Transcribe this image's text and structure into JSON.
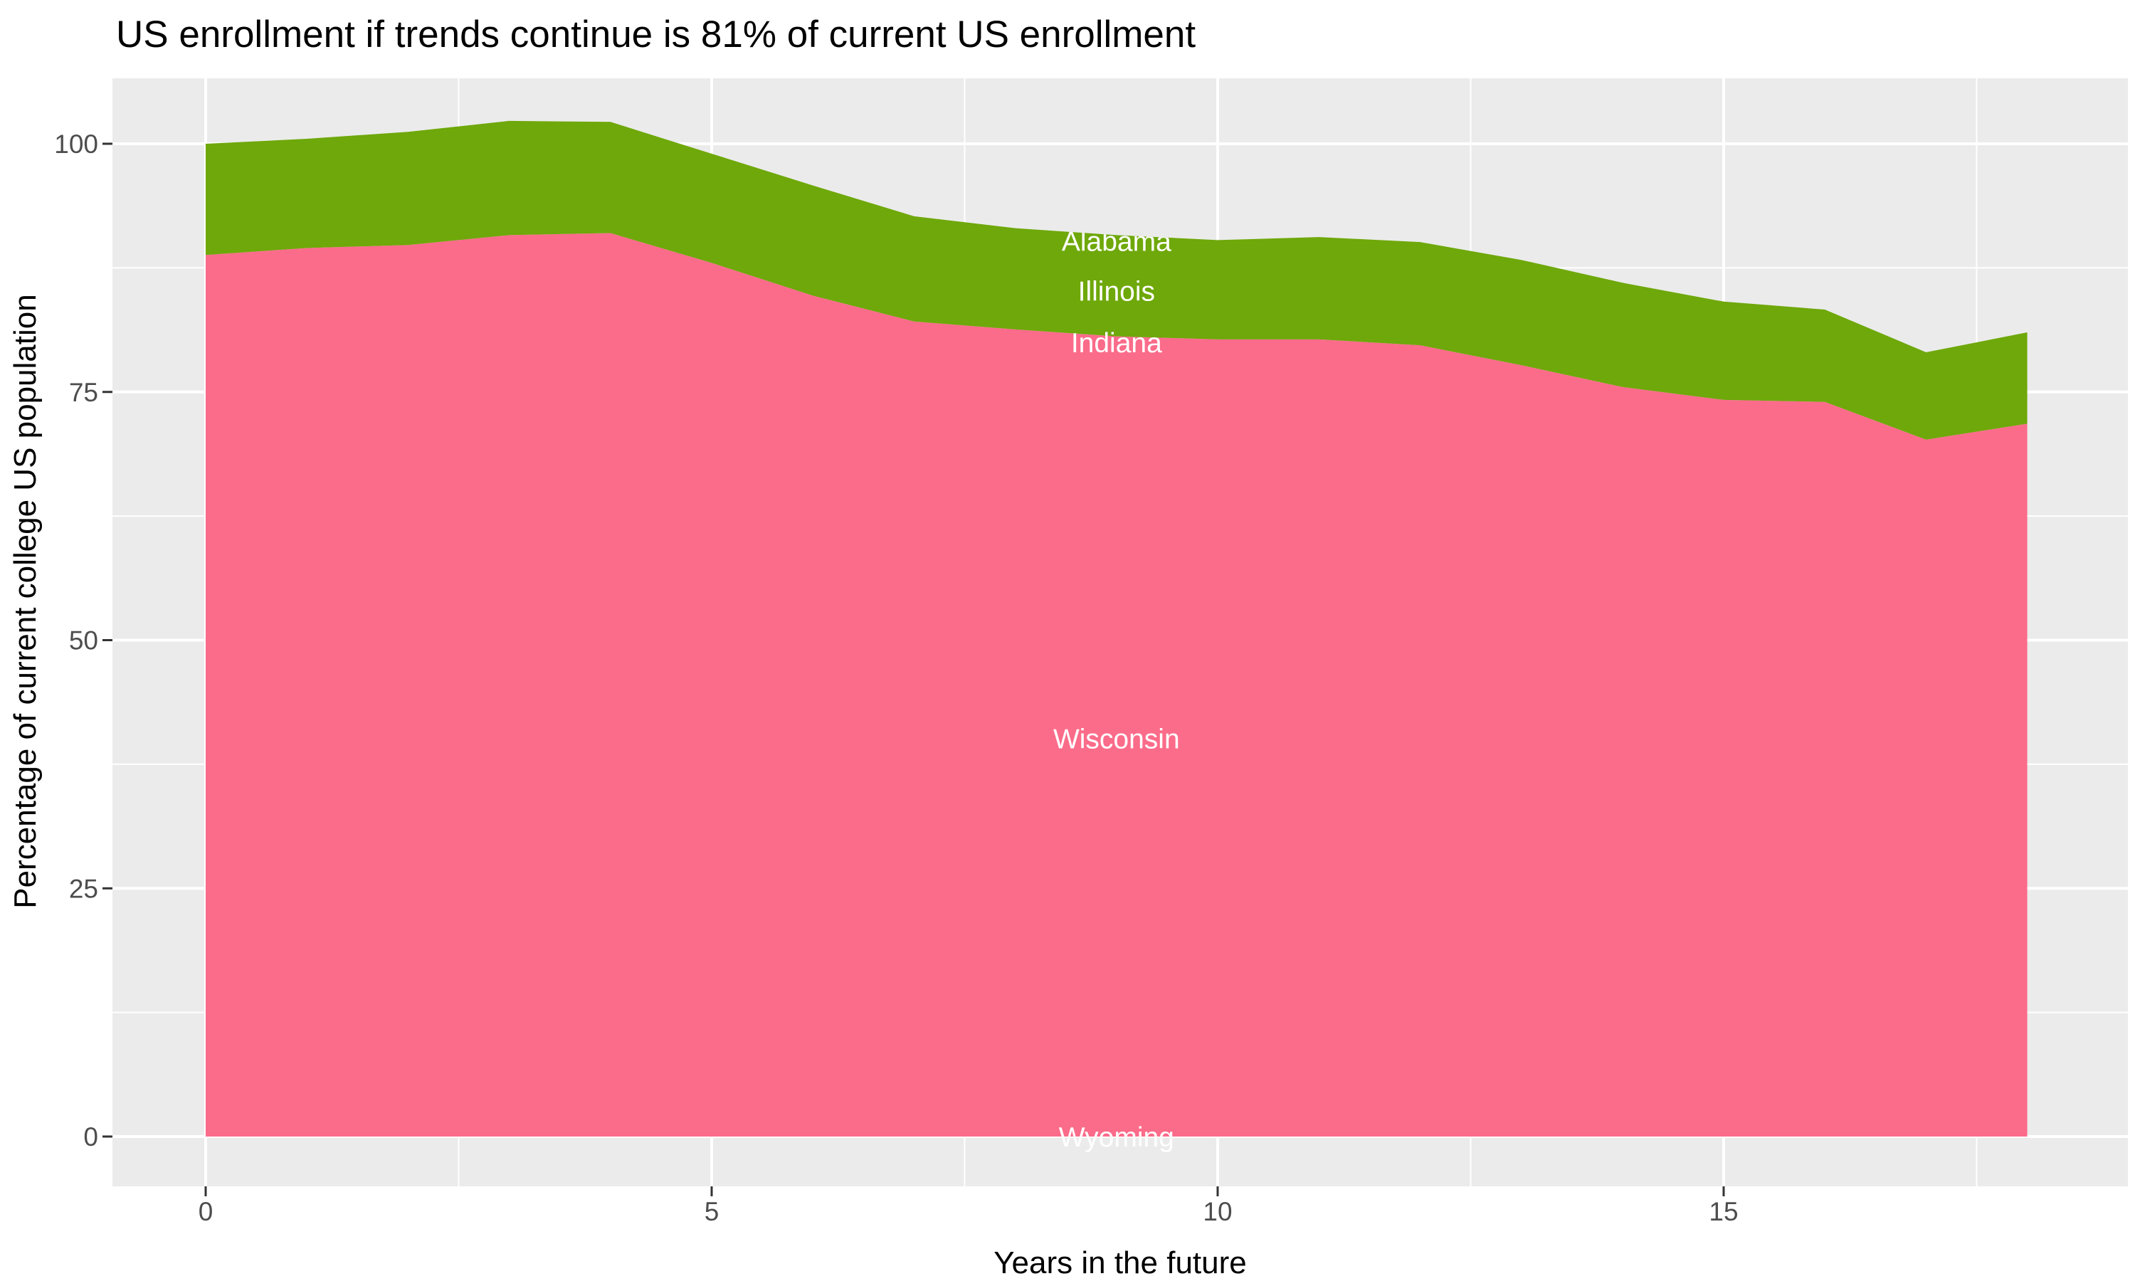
{
  "chart_data": {
    "type": "area",
    "stacked": true,
    "title": "US enrollment if trends continue is 81% of current US enrollment",
    "xlabel": "Years in the future",
    "ylabel": "Percentage of current college US population",
    "legend": "none",
    "grid": "on",
    "x": [
      0,
      1,
      2,
      3,
      4,
      5,
      6,
      7,
      8,
      9,
      10,
      11,
      12,
      13,
      14,
      15,
      16,
      17,
      18
    ],
    "series": [
      {
        "name": "pink-band",
        "color": "#FB6C8A",
        "cumulative_top": [
          88.8,
          89.5,
          89.8,
          90.8,
          91.0,
          88.0,
          84.7,
          82.1,
          81.3,
          80.6,
          80.3,
          80.3,
          79.7,
          77.7,
          75.5,
          74.2,
          74.0,
          70.2,
          71.8
        ]
      },
      {
        "name": "green-band",
        "color": "#6EA80A",
        "cumulative_top": [
          100.0,
          100.5,
          101.2,
          102.3,
          102.2,
          99.0,
          95.8,
          92.7,
          91.5,
          90.8,
          90.3,
          90.6,
          90.1,
          88.3,
          86.0,
          84.1,
          83.3,
          79.0,
          81.0
        ]
      }
    ],
    "baseline": 0,
    "state_labels": [
      {
        "text": "Alabama",
        "x": 9,
        "y": 90.2,
        "clipped": true
      },
      {
        "text": "Illinois",
        "x": 9,
        "y": 85.2,
        "clipped": true
      },
      {
        "text": "Indiana",
        "x": 9,
        "y": 80.0,
        "clipped": true
      },
      {
        "text": "Wisconsin",
        "x": 9,
        "y": 40.1,
        "clipped": false
      },
      {
        "text": "Wyoming",
        "x": 9,
        "y": 0.0,
        "clipped": false
      }
    ],
    "x_ticks": [
      0,
      5,
      10,
      15
    ],
    "y_ticks": [
      0,
      25,
      50,
      75,
      100
    ],
    "x_minor_ticks": [
      2.5,
      7.5,
      12.5,
      17.5
    ],
    "y_minor_ticks": [
      12.5,
      37.5,
      62.5,
      87.5
    ],
    "xlim": [
      -0.92,
      19.0
    ],
    "ylim": [
      -5.0,
      106.6
    ],
    "colors": {
      "panel_background": "#EBEBEB",
      "gridline": "#FFFFFF",
      "tick_label": "#4D4D4D",
      "tick_mark": "#333333",
      "label_text": "#FFFFFF",
      "title_text": "#000000"
    }
  }
}
